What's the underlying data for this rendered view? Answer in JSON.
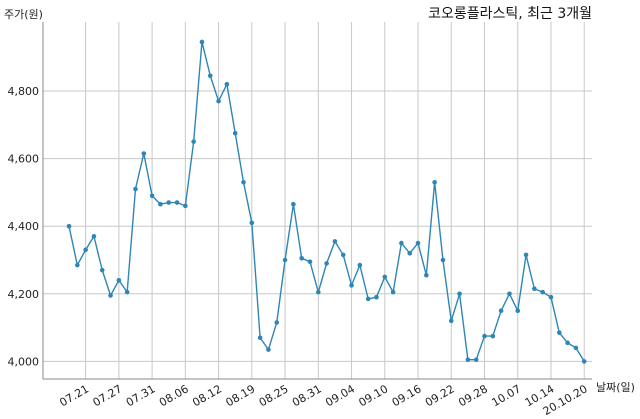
{
  "chart_data": {
    "type": "line",
    "title": "코오롱플라스틱, 최근 3개월",
    "ylabel": "주가(원)",
    "xlabel": "날짜(일)",
    "ylim": [
      3948,
      5004
    ],
    "yticks": [
      4000,
      4200,
      4400,
      4600,
      4800
    ],
    "ytick_labels": [
      "4,000",
      "4,200",
      "4,400",
      "4,600",
      "4,800"
    ],
    "xticks": [
      {
        "label": "07.21",
        "index": 2
      },
      {
        "label": "07.27",
        "index": 6
      },
      {
        "label": "07.31",
        "index": 10
      },
      {
        "label": "08.06",
        "index": 14
      },
      {
        "label": "08.12",
        "index": 18
      },
      {
        "label": "08.19",
        "index": 22
      },
      {
        "label": "08.25",
        "index": 26
      },
      {
        "label": "08.31",
        "index": 30
      },
      {
        "label": "09.04",
        "index": 34
      },
      {
        "label": "09.10",
        "index": 38
      },
      {
        "label": "09.16",
        "index": 42
      },
      {
        "label": "09.22",
        "index": 46
      },
      {
        "label": "09.28",
        "index": 50
      },
      {
        "label": "10.07",
        "index": 54
      },
      {
        "label": "10.14",
        "index": 58
      },
      {
        "label": "20.10.20",
        "index": 62
      }
    ],
    "series": [
      {
        "color": "#2e86b5",
        "values": [
          4400,
          4285,
          4330,
          4370,
          4270,
          4195,
          4240,
          4205,
          4510,
          4615,
          4490,
          4465,
          4470,
          4470,
          4460,
          4650,
          4945,
          4845,
          4770,
          4820,
          4675,
          4530,
          4410,
          4070,
          4035,
          4115,
          4300,
          4465,
          4305,
          4295,
          4205,
          4290,
          4355,
          4315,
          4225,
          4285,
          4185,
          4190,
          4250,
          4205,
          4350,
          4320,
          4350,
          4255,
          4530,
          4300,
          4120,
          4200,
          4005,
          4005,
          4075,
          4075,
          4150,
          4200,
          4150,
          4315,
          4215,
          4205,
          4190,
          4085,
          4055,
          4040,
          4000
        ]
      }
    ]
  }
}
